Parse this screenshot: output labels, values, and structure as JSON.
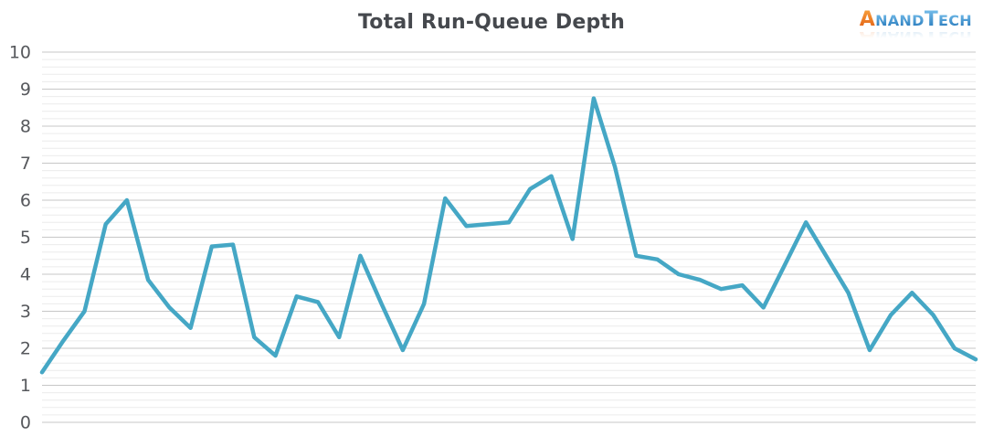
{
  "page": {
    "background": "#ffffff"
  },
  "header": {
    "title": "Total Run-Queue Depth"
  },
  "logo": {
    "a": "A",
    "nand": "NAND",
    "t": "T",
    "ech": "ECH",
    "orange": "#ee7125",
    "blue": "#2f8fd0"
  },
  "chart_data": {
    "type": "line",
    "title": "Total Run-Queue Depth",
    "xlabel": "",
    "ylabel": "",
    "x_axis_labels": "none",
    "legend": "none",
    "ylim": [
      0,
      10
    ],
    "yticks": [
      0,
      1,
      2,
      3,
      4,
      5,
      6,
      7,
      8,
      9,
      10
    ],
    "values": [
      1.35,
      2.2,
      3.0,
      5.35,
      6.0,
      3.85,
      3.1,
      2.55,
      4.75,
      4.8,
      2.3,
      1.8,
      3.4,
      3.25,
      2.3,
      4.5,
      3.2,
      1.95,
      3.2,
      6.05,
      5.3,
      5.35,
      5.4,
      6.3,
      6.65,
      4.95,
      8.75,
      6.9,
      4.5,
      4.4,
      4.0,
      3.85,
      3.6,
      3.7,
      3.1,
      4.25,
      5.4,
      4.45,
      3.5,
      1.95,
      2.9,
      3.5,
      2.9,
      2.0,
      1.7
    ],
    "grid": {
      "major_color": "#c7c7c7",
      "minor_color": "#ececec",
      "minor_interval": 0.2
    },
    "line_color": "#45a7c5",
    "line_width": 4.5,
    "tick_label_color": "#56585c",
    "title_color": "#45484d"
  }
}
